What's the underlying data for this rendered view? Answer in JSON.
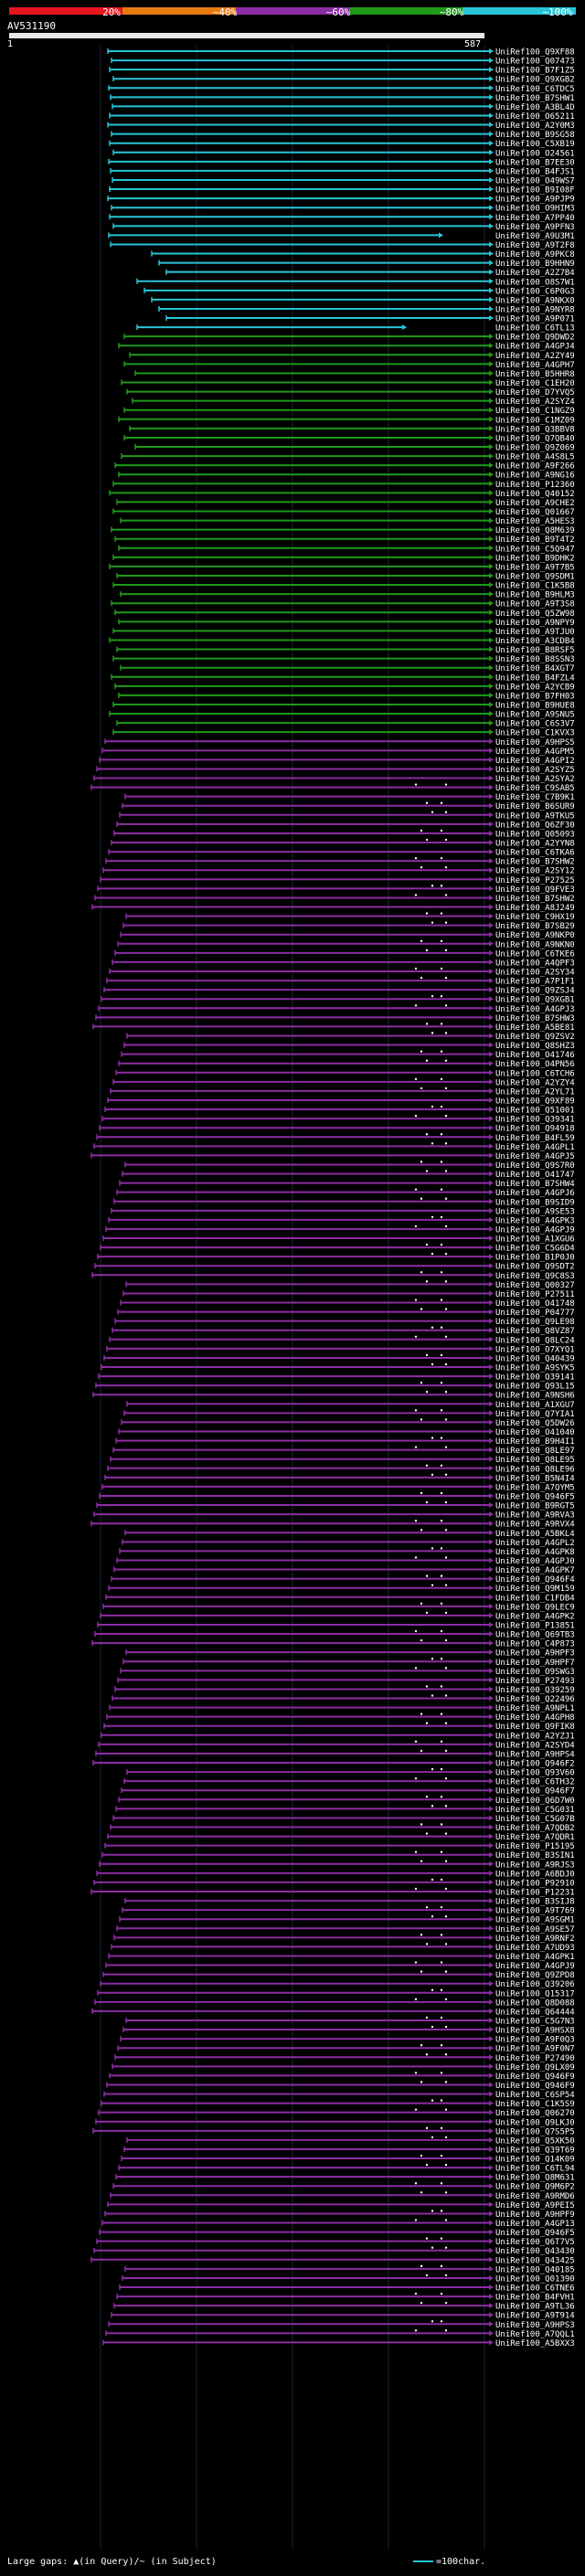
{
  "legend": {
    "scale_labels": [
      "20%",
      "~40%",
      "~60%",
      "~80%",
      "~100%"
    ],
    "colors": [
      "#e8151f",
      "#e87a12",
      "#8c2ca3",
      "#1f9a1a",
      "#27c5d6"
    ]
  },
  "query": {
    "name": "AV531190",
    "start": "1",
    "end": "587"
  },
  "footer": {
    "large_gaps_label": "Large gaps: ▲(in Query)/~ (in Subject)",
    "scale_label": "=100char."
  },
  "hits": [
    "UniRef100_Q9XF88",
    "UniRef100_Q07473",
    "UniRef100_B7F1Z5",
    "UniRef100_Q9XGB2",
    "UniRef100_C6TDC5",
    "UniRef100_B7SHW1",
    "UniRef100_A3BL4D",
    "UniRef100_O65211",
    "UniRef100_A2Y0M3",
    "UniRef100_B9SG58",
    "UniRef100_C5XB19",
    "UniRef100_O24561",
    "UniRef100_B7EE30",
    "UniRef100_B4FJS1",
    "UniRef100_O49WS7",
    "UniRef100_B9I08F",
    "UniRef100_A9PJP9",
    "UniRef100_O9HIM3",
    "UniRef100_A7PP40",
    "UniRef100_A9PFN3",
    "UniRef100_A9U3M1",
    "UniRef100_A9T2F8",
    "UniRef100_A9PKC8",
    "UniRef100_B9HHN9",
    "UniRef100_A2Z7B4",
    "UniRef100_O8S7W1",
    "UniRef100_C6P0G3",
    "UniRef100_A9NKX0",
    "UniRef100_A9NYR8",
    "UniRef100_A9P071",
    "UniRef100_C6TL13",
    "UniRef100_Q9DWD2",
    "UniRef100_A4GPJ4",
    "UniRef100_A2ZY49",
    "UniRef100_A4GPH7",
    "UniRef100_B5HHR8",
    "UniRef100_C1EH20",
    "UniRef100_D7YVQ5",
    "UniRef100_A2SYZ4",
    "UniRef100_C1NGZ9",
    "UniRef100_C1MZ09",
    "UniRef100_Q3BBV8",
    "UniRef100_Q7QB40",
    "UniRef100_Q9Z069",
    "UniRef100_A4S8L5",
    "UniRef100_A9F266",
    "UniRef100_A9NG16",
    "UniRef100_P12360",
    "UniRef100_Q40152",
    "UniRef100_A9CHE2",
    "UniRef100_Q01667",
    "UniRef100_A5HES3",
    "UniRef100_Q8M639",
    "UniRef100_B9T4T2",
    "UniRef100_C5Q947",
    "UniRef100_B9DHK2",
    "UniRef100_A9T7B5",
    "UniRef100_Q9SDM1",
    "UniRef100_C1K5B8",
    "UniRef100_B9HLM3",
    "UniRef100_A9T3S8",
    "UniRef100_Q5ZW98",
    "UniRef100_A9NPY9",
    "UniRef100_A9TJU0",
    "UniRef100_A3CDB4",
    "UniRef100_B8RSF5",
    "UniRef100_B8SSN3",
    "UniRef100_B4XGT7",
    "UniRef100_B4FZL4",
    "UniRef100_A2YCB9",
    "UniRef100_B7FH03",
    "UniRef100_B9HUE8",
    "UniRef100_A9SNU5",
    "UniRef100_C6S3V7",
    "UniRef100_C1KVX3",
    "UniRef100_A9HPS5",
    "UniRef100_A4GPM5",
    "UniRef100_A4GPI2",
    "UniRef100_A2SYZ5",
    "UniRef100_A2SYA2",
    "UniRef100_C9SAB5",
    "UniRef100_C7B9K1",
    "UniRef100_B6SUR9",
    "UniRef100_A9TKU5",
    "UniRef100_Q6ZF30",
    "UniRef100_Q05093",
    "UniRef100_A2YYN8",
    "UniRef100_C6TKA6",
    "UniRef100_B7SHW2",
    "UniRef100_A2SY12",
    "UniRef100_P27525",
    "UniRef100_Q9FVE3",
    "UniRef100_B7SHW2",
    "UniRef100_A8J249",
    "UniRef100_C9HX19",
    "UniRef100_B7SB29",
    "UniRef100_A9NKP0",
    "UniRef100_A9NKN0",
    "UniRef100_C6TKE6",
    "UniRef100_A4QPF3",
    "UniRef100_A2SY34",
    "UniRef100_A7P1F1",
    "UniRef100_Q9ZSJ4",
    "UniRef100_Q9XGB1",
    "UniRef100_A4GPJ3",
    "UniRef100_B7SHW3",
    "UniRef100_A5BE81",
    "UniRef100_Q9ZSV2",
    "UniRef100_Q8SHZ3",
    "UniRef100_O41746",
    "UniRef100_O4PN56",
    "UniRef100_C6TCH6",
    "UniRef100_A2YZY4",
    "UniRef100_A2YL71",
    "UniRef100_Q9XF89",
    "UniRef100_Q51001",
    "UniRef100_Q39341",
    "UniRef100_Q94918",
    "UniRef100_B4FL59",
    "UniRef100_A4GPL1",
    "UniRef100_A4GPJ5",
    "UniRef100_Q9S7R0",
    "UniRef100_O41747",
    "UniRef100_B7SHW4",
    "UniRef100_A4GPJ6",
    "UniRef100_B9SID9",
    "UniRef100_A9SE53",
    "UniRef100_A4GPK3",
    "UniRef100_A4GPJ9",
    "UniRef100_A1XGU6",
    "UniRef100_C5G6D4",
    "UniRef100_B1P0J0",
    "UniRef100_Q9SDT2",
    "UniRef100_Q9C8S3",
    "UniRef100_Q00327",
    "UniRef100_P27511",
    "UniRef100_O41748",
    "UniRef100_P04777",
    "UniRef100_Q9LE98",
    "UniRef100_Q8VZ87",
    "UniRef100_Q8LC24",
    "UniRef100_O7XYQ1",
    "UniRef100_Q40439",
    "UniRef100_A9SYK5",
    "UniRef100_Q39141",
    "UniRef100_Q93L15",
    "UniRef100_A9NSH6",
    "UniRef100_A1XGU7",
    "UniRef100_Q7YIA1",
    "UniRef100_Q5DW26",
    "UniRef100_O41040",
    "UniRef100_B9H4I1",
    "UniRef100_Q8LE97",
    "UniRef100_Q8LE95",
    "UniRef100_Q8LE96",
    "UniRef100_B5N4I4",
    "UniRef100_A7QYM5",
    "UniRef100_Q946F5",
    "UniRef100_B9RGT5",
    "UniRef100_A9RVA3",
    "UniRef100_A9RVX4",
    "UniRef100_A5BKL4",
    "UniRef100_A4GPL2",
    "UniRef100_A4GPK8",
    "UniRef100_A4GPJ0",
    "UniRef100_A4GPK7",
    "UniRef100_Q946F4",
    "UniRef100_Q9M159",
    "UniRef100_C1FDB4",
    "UniRef100_Q9LEC9",
    "UniRef100_A4GPK2",
    "UniRef100_P13851",
    "UniRef100_Q69TB3",
    "UniRef100_C4P873",
    "UniRef100_A9HPF3",
    "UniRef100_A9HPF7",
    "UniRef100_O9SWG3",
    "UniRef100_P27493",
    "UniRef100_Q39259",
    "UniRef100_Q22496",
    "UniRef100_A9NPL1",
    "UniRef100_A4GPH8",
    "UniRef100_Q9FIK8",
    "UniRef100_A2YZJ1",
    "UniRef100_A2SYD4",
    "UniRef100_A9HPS4",
    "UniRef100_Q946F2",
    "UniRef100_Q93V60",
    "UniRef100_C6TH32",
    "UniRef100_Q946F7",
    "UniRef100_Q6D7W0",
    "UniRef100_C5G031",
    "UniRef100_C5G07B",
    "UniRef100_A7QDB2",
    "UniRef100_A7QDR1",
    "UniRef100_P15195",
    "UniRef100_B3SIN1",
    "UniRef100_A9RJS3",
    "UniRef100_A6BDJ0",
    "UniRef100_P92910",
    "UniRef100_P12231",
    "UniRef100_B3SIJ8",
    "UniRef100_A9T769",
    "UniRef100_A9SGM1",
    "UniRef100_A9SE57",
    "UniRef100_A9RNF2",
    "UniRef100_A7UD93",
    "UniRef100_A4GPK1",
    "UniRef100_A4GPJ9",
    "UniRef100_Q9ZPD8",
    "UniRef100_Q39206",
    "UniRef100_Q15317",
    "UniRef100_Q8D088",
    "UniRef100_Q64444",
    "UniRef100_C5G7N3",
    "UniRef100_A9HSX8",
    "UniRef100_A9F0Q3",
    "UniRef100_A9F0N7",
    "UniRef100_P27490",
    "UniRef100_Q9LX09",
    "UniRef100_Q946F9",
    "UniRef100_Q946F9",
    "UniRef100_C6SP54",
    "UniRef100_C1K5S9",
    "UniRef100_Q06270",
    "UniRef100_Q9LKJ0",
    "UniRef100_Q7S5P5",
    "UniRef100_Q5XK50",
    "UniRef100_Q39T69",
    "UniRef100_Q14K09",
    "UniRef100_C6TL94",
    "UniRef100_Q8M631",
    "UniRef100_Q9M6P2",
    "UniRef100_A9RMD6",
    "UniRef100_A9PEI5",
    "UniRef100_A9HPF9",
    "UniRef100_A4GP13",
    "UniRef100_Q946F5",
    "UniRef100_Q6T7V5",
    "UniRef100_Q43430",
    "UniRef100_Q43425",
    "UniRef100_Q40185",
    "UniRef100_Q01390",
    "UniRef100_C6TNE6",
    "UniRef100_B4FVH1",
    "UniRef100_A9TL36",
    "UniRef100_A9T914",
    "UniRef100_A9HPS3",
    "UniRef100_A7QQL1",
    "UniRef100_A5BXX3"
  ]
}
